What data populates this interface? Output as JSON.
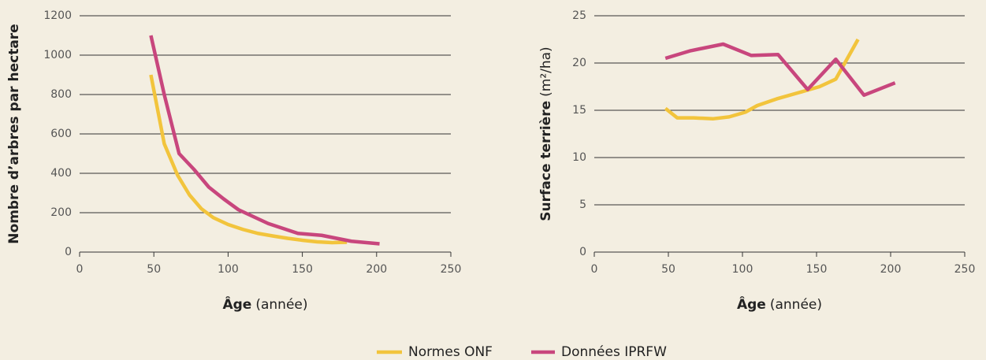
{
  "chart_data": [
    {
      "type": "line",
      "ylabel": "Nombre d’arbres par hectare",
      "xlabel": "Âge",
      "xlabel_unit": "(année)",
      "xlim": [
        0,
        250
      ],
      "xticks": [
        0,
        50,
        100,
        150,
        200,
        250
      ],
      "ylim": [
        0,
        1200
      ],
      "yticks": [
        0,
        200,
        400,
        600,
        800,
        1000,
        1200
      ],
      "grid": true,
      "series": [
        {
          "name": "Normes ONF",
          "color": "#f2c43c",
          "x": [
            48,
            57,
            66,
            74,
            82,
            90,
            100,
            110,
            120,
            130,
            140,
            150,
            160,
            170,
            180
          ],
          "values": [
            900,
            550,
            390,
            290,
            220,
            175,
            140,
            115,
            95,
            82,
            70,
            60,
            52,
            48,
            50
          ]
        },
        {
          "name": "Données IPRFW",
          "color": "#c8467d",
          "x": [
            48,
            57,
            67,
            77,
            87,
            97,
            107,
            117,
            127,
            137,
            147,
            163,
            183,
            202
          ],
          "values": [
            1100,
            800,
            500,
            420,
            330,
            270,
            215,
            180,
            145,
            120,
            95,
            85,
            55,
            42
          ]
        }
      ]
    },
    {
      "type": "line",
      "ylabel": "Surface terrière",
      "ylabel_unit": "(m²/ha)",
      "xlabel": "Âge",
      "xlabel_unit": "(année)",
      "xlim": [
        0,
        250
      ],
      "xticks": [
        0,
        50,
        100,
        150,
        200,
        250
      ],
      "ylim": [
        0,
        25
      ],
      "yticks": [
        0,
        5,
        10,
        15,
        20,
        25
      ],
      "grid": true,
      "series": [
        {
          "name": "Normes ONF",
          "color": "#f2c43c",
          "x": [
            48,
            56,
            67,
            80,
            91,
            102,
            110,
            123,
            141,
            152,
            163,
            178
          ],
          "values": [
            15.2,
            14.2,
            14.2,
            14.1,
            14.3,
            14.8,
            15.5,
            16.2,
            17,
            17.5,
            18.3,
            22.5
          ]
        },
        {
          "name": "Données IPRFW",
          "color": "#c8467d",
          "x": [
            48,
            65,
            87,
            106,
            124,
            144,
            163,
            182,
            203
          ],
          "values": [
            20.5,
            21.3,
            22,
            20.8,
            20.9,
            17.2,
            20.4,
            16.6,
            17.9
          ]
        }
      ]
    }
  ]
}
